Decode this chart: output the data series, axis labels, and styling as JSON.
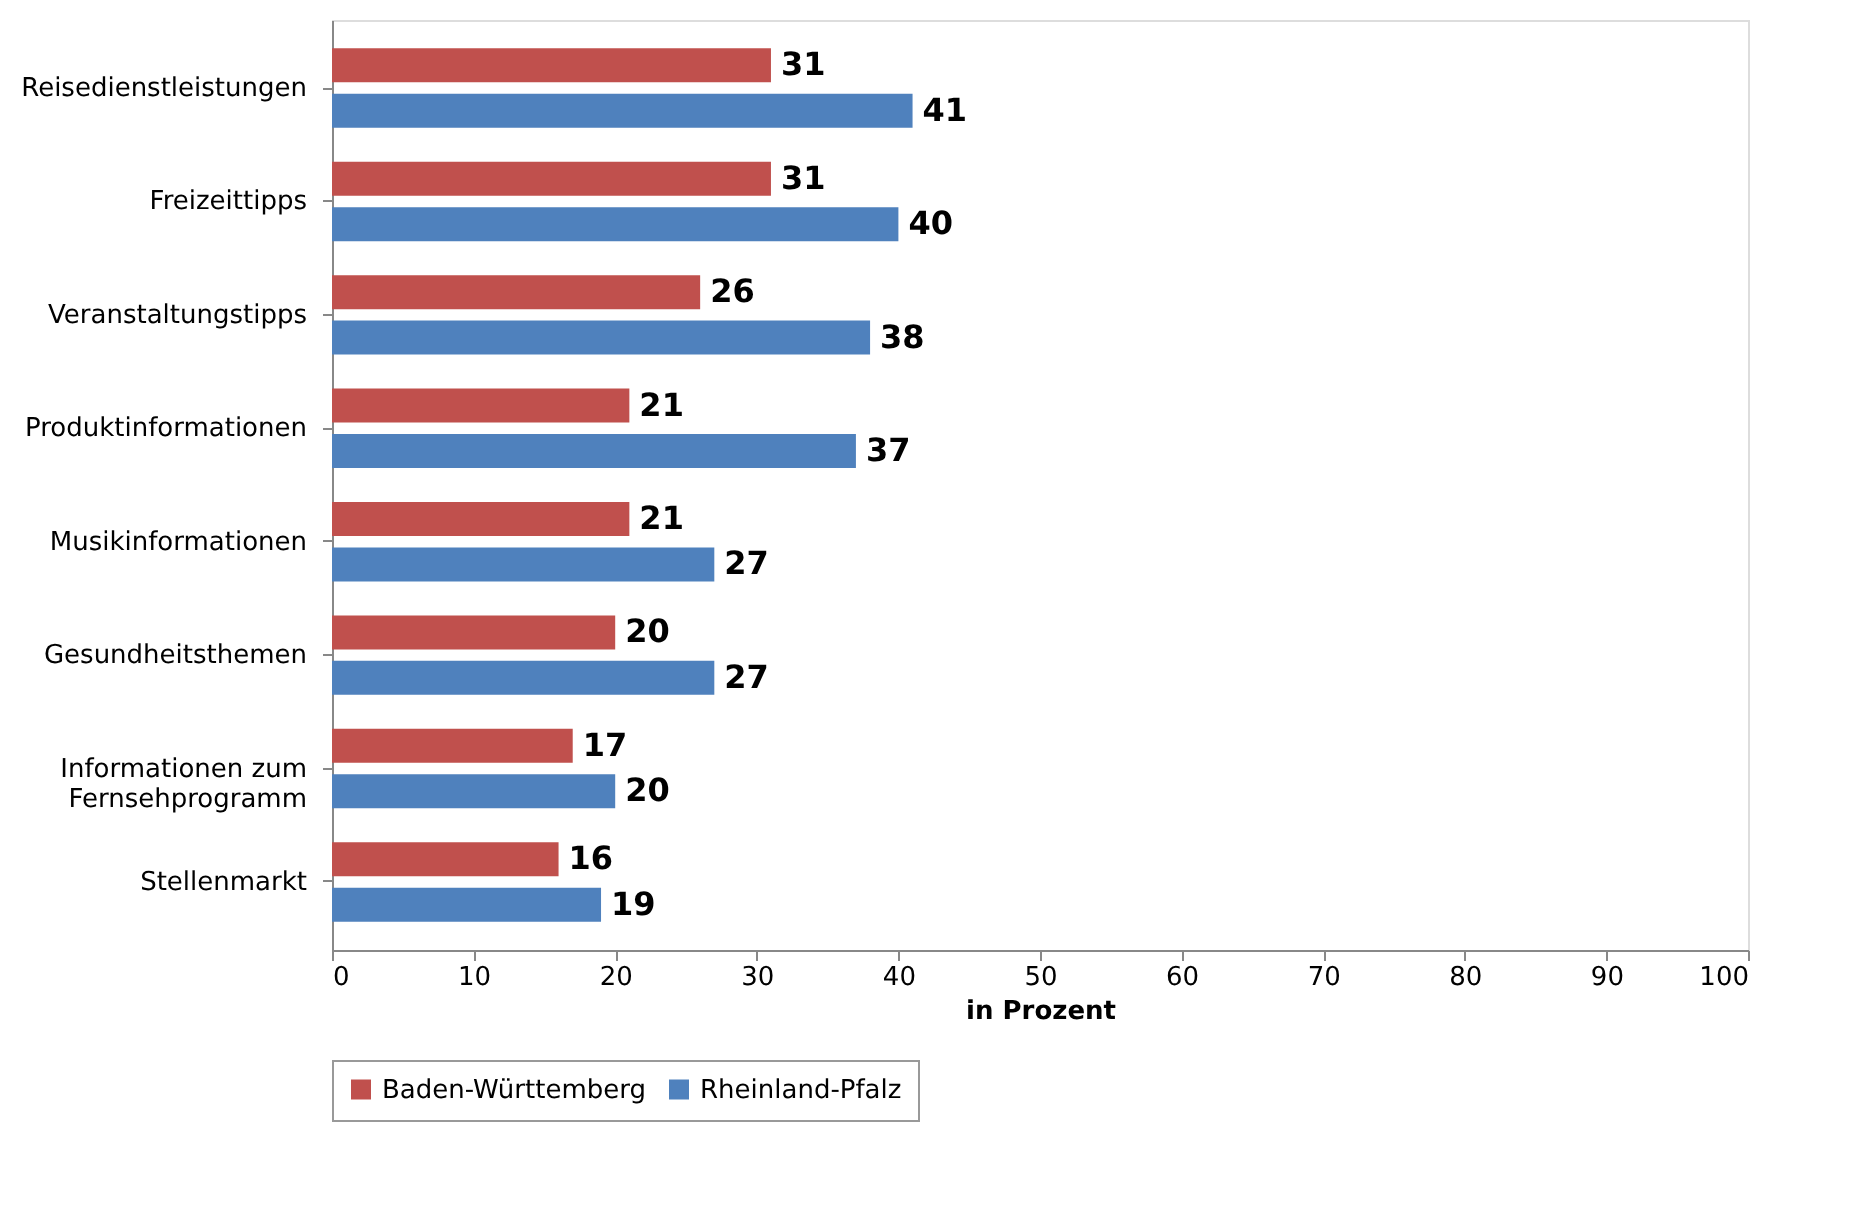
{
  "chart_data": {
    "type": "bar",
    "orientation": "horizontal",
    "categories": [
      "Reisedienstleistungen",
      "Freizeittipps",
      "Veranstaltungstipps",
      "Produktinformationen",
      "Musikinformationen",
      "Gesundheitsthemen",
      "Informationen zum\nFernsehprogramm",
      "Stellenmarkt"
    ],
    "series": [
      {
        "name": "Baden-Württemberg",
        "color": "#c0504d",
        "values": [
          31,
          31,
          26,
          21,
          21,
          20,
          17,
          16
        ]
      },
      {
        "name": "Rheinland-Pfalz",
        "color": "#4f81bd",
        "values": [
          41,
          40,
          38,
          37,
          27,
          27,
          20,
          19
        ]
      }
    ],
    "xlabel": "in Prozent",
    "xlim": [
      0,
      100
    ],
    "xticks": [
      0,
      10,
      20,
      30,
      40,
      50,
      60,
      70,
      80,
      90,
      100
    ],
    "grid": false,
    "legend": "bottom",
    "data_labels": true
  }
}
